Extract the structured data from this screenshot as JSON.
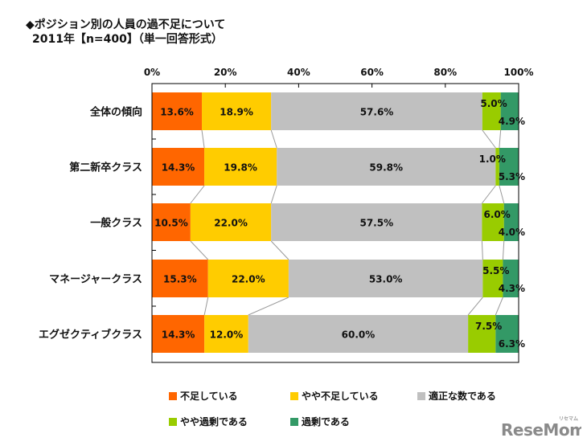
{
  "title": "◆ポジション別の人員の過不足について",
  "subtitle": "2011年【n=400】（単一回答形式）",
  "chart_data": {
    "type": "bar",
    "orientation": "horizontal",
    "stacked": "percent",
    "title": "◆ポジション別の人員の過不足について",
    "subtitle": "2011年【n=400】（単一回答形式）",
    "xlim": [
      0,
      100
    ],
    "xticks": [
      "0%",
      "20%",
      "40%",
      "60%",
      "80%",
      "100%"
    ],
    "categories": [
      "全体の傾向",
      "第二新卒クラス",
      "一般クラス",
      "マネージャークラス",
      "エグゼクティブクラス"
    ],
    "series": [
      {
        "name": "不足している",
        "color": "#FF6600",
        "values": [
          13.6,
          14.3,
          10.5,
          15.3,
          14.3
        ],
        "labels": [
          "13.6%",
          "14.3%",
          "10.5%",
          "15.3%",
          "14.3%"
        ]
      },
      {
        "name": "やや不足している",
        "color": "#FFCC00",
        "values": [
          18.9,
          19.8,
          22.0,
          22.0,
          12.0
        ],
        "labels": [
          "18.9%",
          "19.8%",
          "22.0%",
          "22.0%",
          "12.0%"
        ]
      },
      {
        "name": "適正な数である",
        "color": "#C0C0C0",
        "values": [
          57.6,
          59.8,
          57.5,
          53.0,
          60.0
        ],
        "labels": [
          "57.6%",
          "59.8%",
          "57.5%",
          "53.0%",
          "60.0%"
        ]
      },
      {
        "name": "やや過剰である",
        "color": "#99CC00",
        "values": [
          5.0,
          1.0,
          6.0,
          5.5,
          7.5
        ],
        "labels": [
          "5.0%",
          "1.0%",
          "6.0%",
          "5.5%",
          "7.5%"
        ]
      },
      {
        "name": "過剰である",
        "color": "#339966",
        "values": [
          4.9,
          5.3,
          4.0,
          4.3,
          6.3
        ],
        "labels": [
          "4.9%",
          "5.3%",
          "4.0%",
          "4.3%",
          "6.3%"
        ]
      }
    ],
    "legend_position": "bottom",
    "series_lines": true,
    "grid": false
  },
  "logo": {
    "text": "ReseMom",
    "kana": "リセマム"
  }
}
